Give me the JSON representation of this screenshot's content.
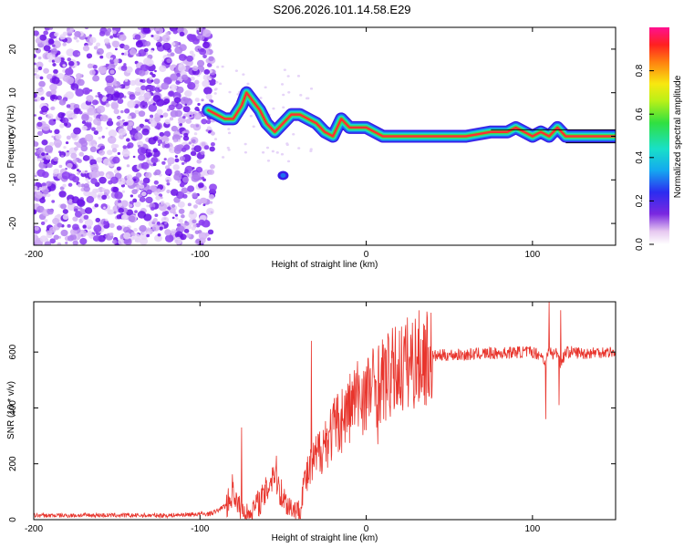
{
  "title": "S206.2026.101.14.58.E29",
  "chart_data": [
    {
      "type": "heatmap",
      "name": "spectrogram",
      "xlabel": "Height of straight line (km)",
      "ylabel": "Frequency (Hz)",
      "xlim": [
        -200,
        150
      ],
      "ylim": [
        -25,
        25
      ],
      "xticks": [
        -200,
        -100,
        0,
        100
      ],
      "yticks": [
        20,
        10,
        0,
        -10,
        -20
      ],
      "colorbar": {
        "label": "Normalized spectral amplitude",
        "range": [
          0,
          1
        ],
        "ticks": [
          "0.0",
          "0.2",
          "0.4",
          "0.6",
          "0.8"
        ]
      },
      "ridge": {
        "x": [
          -95,
          -90,
          -85,
          -80,
          -75,
          -72,
          -68,
          -64,
          -60,
          -55,
          -50,
          -45,
          -40,
          -35,
          -30,
          -25,
          -20,
          -15,
          -10,
          -5,
          0,
          5,
          10,
          20,
          40,
          60,
          75,
          85,
          90,
          95,
          100,
          105,
          110,
          115,
          120,
          150
        ],
        "y": [
          6,
          5,
          4,
          4,
          7,
          10,
          8,
          6,
          3,
          1,
          3,
          5,
          5,
          4,
          3,
          1,
          0,
          4,
          2,
          2,
          2,
          1,
          0,
          0,
          0,
          0,
          1,
          1,
          2,
          1,
          0,
          1,
          0,
          2,
          0,
          0
        ]
      }
    },
    {
      "type": "line",
      "name": "snr",
      "xlabel": "Height of straight line (km)",
      "ylabel": "SNR (10 * v/v)",
      "xlim": [
        -200,
        150
      ],
      "ylim": [
        0,
        780
      ],
      "xticks": [
        -200,
        -100,
        0,
        100
      ],
      "yticks": [
        0,
        200,
        400,
        600
      ],
      "color": "#e8342c",
      "series": [
        {
          "name": "SNR",
          "x": [
            -200,
            -180,
            -160,
            -140,
            -120,
            -100,
            -95,
            -90,
            -85,
            -82,
            -80,
            -78,
            -76,
            -74,
            -72,
            -70,
            -68,
            -65,
            -62,
            -60,
            -58,
            -55,
            -52,
            -50,
            -48,
            -46,
            -44,
            -42,
            -40,
            -38,
            -35,
            -32,
            -30,
            -28,
            -25,
            -22,
            -20,
            -18,
            -15,
            -12,
            -10,
            -8,
            -5,
            -2,
            0,
            5,
            10,
            15,
            20,
            25,
            30,
            35,
            40,
            50,
            60,
            70,
            80,
            90,
            100,
            105,
            108,
            110,
            112,
            115,
            117,
            120,
            125,
            130,
            140,
            150
          ],
          "y": [
            15,
            15,
            16,
            15,
            15,
            20,
            20,
            30,
            50,
            70,
            120,
            60,
            40,
            30,
            20,
            25,
            40,
            60,
            80,
            100,
            140,
            180,
            110,
            80,
            60,
            50,
            40,
            35,
            30,
            120,
            160,
            200,
            220,
            250,
            280,
            300,
            320,
            340,
            360,
            380,
            400,
            420,
            440,
            450,
            460,
            480,
            500,
            520,
            540,
            560,
            570,
            580,
            585,
            590,
            590,
            595,
            595,
            600,
            600,
            590,
            560,
            610,
            590,
            600,
            560,
            600,
            600,
            595,
            600,
            600
          ]
        }
      ],
      "spikes": {
        "x": [
          -75,
          -38,
          -33,
          0,
          7,
          108,
          110,
          116,
          117
        ],
        "y": [
          330,
          150,
          640,
          320,
          270,
          360,
          780,
          410,
          750
        ]
      }
    }
  ]
}
